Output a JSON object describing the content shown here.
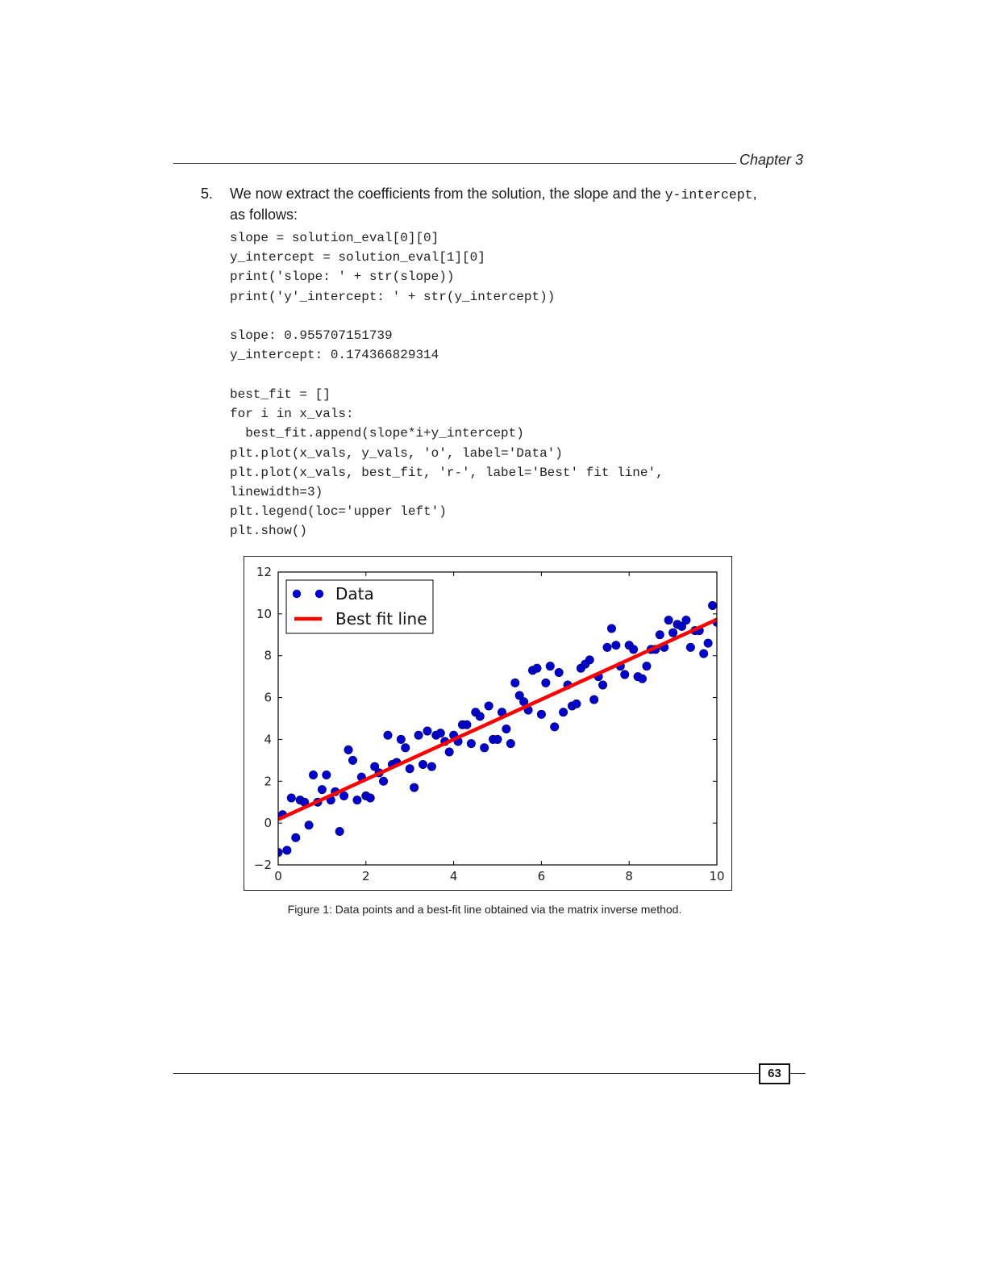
{
  "header": {
    "chapter": "Chapter 3"
  },
  "step": {
    "number": "5.",
    "text_before": "We now extract the coefficients from the solution, the slope and the ",
    "inline_code": "y-intercept",
    "text_after": ",",
    "line2": "as follows:"
  },
  "code_block_1": "slope = solution_eval[0][0]\ny_intercept = solution_eval[1][0]\nprint('slope: ' + str(slope))\nprint('y'_intercept: ' + str(y_intercept))",
  "output_block": "slope: 0.955707151739\ny_intercept: 0.174366829314",
  "code_block_2": "best_fit = []\nfor i in x_vals:\n  best_fit.append(slope*i+y_intercept)\nplt.plot(x_vals, y_vals, 'o', label='Data')\nplt.plot(x_vals, best_fit, 'r-', label='Best' fit line',\nlinewidth=3)\nplt.legend(loc='upper left')\nplt.show()",
  "chart_data": {
    "type": "scatter",
    "xlim": [
      0,
      10
    ],
    "ylim": [
      -2,
      12
    ],
    "x_ticks": [
      "0",
      "2",
      "4",
      "6",
      "8",
      "10"
    ],
    "y_ticks": [
      "−2",
      "0",
      "2",
      "4",
      "6",
      "8",
      "10",
      "12"
    ],
    "legend": {
      "placement": "upper-left",
      "entries": [
        "Data",
        "Best fit line"
      ]
    },
    "colors": {
      "data": "#0000cc",
      "fit": "#ff0000"
    },
    "series": [
      {
        "name": "Data",
        "x": [
          0.0,
          0.1,
          0.2,
          0.3,
          0.4,
          0.5,
          0.6,
          0.7,
          0.8,
          0.9,
          1.0,
          1.1,
          1.2,
          1.3,
          1.4,
          1.5,
          1.6,
          1.7,
          1.8,
          1.9,
          2.0,
          2.1,
          2.2,
          2.3,
          2.4,
          2.5,
          2.6,
          2.7,
          2.8,
          2.9,
          3.0,
          3.1,
          3.2,
          3.3,
          3.4,
          3.5,
          3.6,
          3.7,
          3.8,
          3.9,
          4.0,
          4.1,
          4.2,
          4.3,
          4.4,
          4.5,
          4.6,
          4.7,
          4.8,
          4.9,
          5.0,
          5.1,
          5.2,
          5.3,
          5.4,
          5.5,
          5.6,
          5.7,
          5.8,
          5.9,
          6.0,
          6.1,
          6.2,
          6.3,
          6.4,
          6.5,
          6.6,
          6.7,
          6.8,
          6.9,
          7.0,
          7.1,
          7.2,
          7.3,
          7.4,
          7.5,
          7.6,
          7.7,
          7.8,
          7.9,
          8.0,
          8.1,
          8.2,
          8.3,
          8.4,
          8.5,
          8.6,
          8.7,
          8.8,
          8.9,
          9.0,
          9.1,
          9.2,
          9.3,
          9.4,
          9.5,
          9.6,
          9.7,
          9.8,
          9.9,
          10.0
        ],
        "y": [
          -1.4,
          0.4,
          -1.3,
          1.2,
          -0.7,
          1.1,
          1.0,
          -0.1,
          2.3,
          1.0,
          1.6,
          2.3,
          1.1,
          1.5,
          -0.4,
          1.3,
          3.5,
          3.0,
          1.1,
          2.2,
          1.3,
          1.2,
          2.7,
          2.4,
          2.0,
          4.2,
          2.8,
          2.9,
          4.0,
          3.6,
          2.6,
          1.7,
          4.2,
          2.8,
          4.4,
          2.7,
          4.2,
          4.3,
          3.9,
          3.4,
          4.2,
          3.9,
          4.7,
          4.7,
          3.8,
          5.3,
          5.1,
          3.6,
          5.6,
          4.0,
          4.0,
          5.3,
          4.5,
          3.8,
          6.7,
          6.1,
          5.8,
          5.4,
          7.3,
          7.4,
          5.2,
          6.7,
          7.5,
          4.6,
          7.2,
          5.3,
          6.6,
          5.6,
          5.7,
          7.4,
          7.6,
          7.8,
          5.9,
          7.0,
          6.6,
          8.4,
          9.3,
          8.5,
          7.5,
          7.1,
          8.5,
          8.3,
          7.0,
          6.9,
          7.5,
          8.3,
          8.3,
          9.0,
          8.4,
          9.7,
          9.1,
          9.5,
          9.4,
          9.7,
          8.4,
          9.2,
          9.2,
          8.1,
          8.6,
          10.4,
          9.6
        ]
      },
      {
        "name": "Best fit line",
        "x": [
          0,
          10
        ],
        "y": [
          0.174366829314,
          9.731438346704
        ]
      }
    ]
  },
  "caption": "Figure 1: Data points and a best-fit line obtained via the matrix inverse method.",
  "footer": {
    "page_number": "63"
  }
}
